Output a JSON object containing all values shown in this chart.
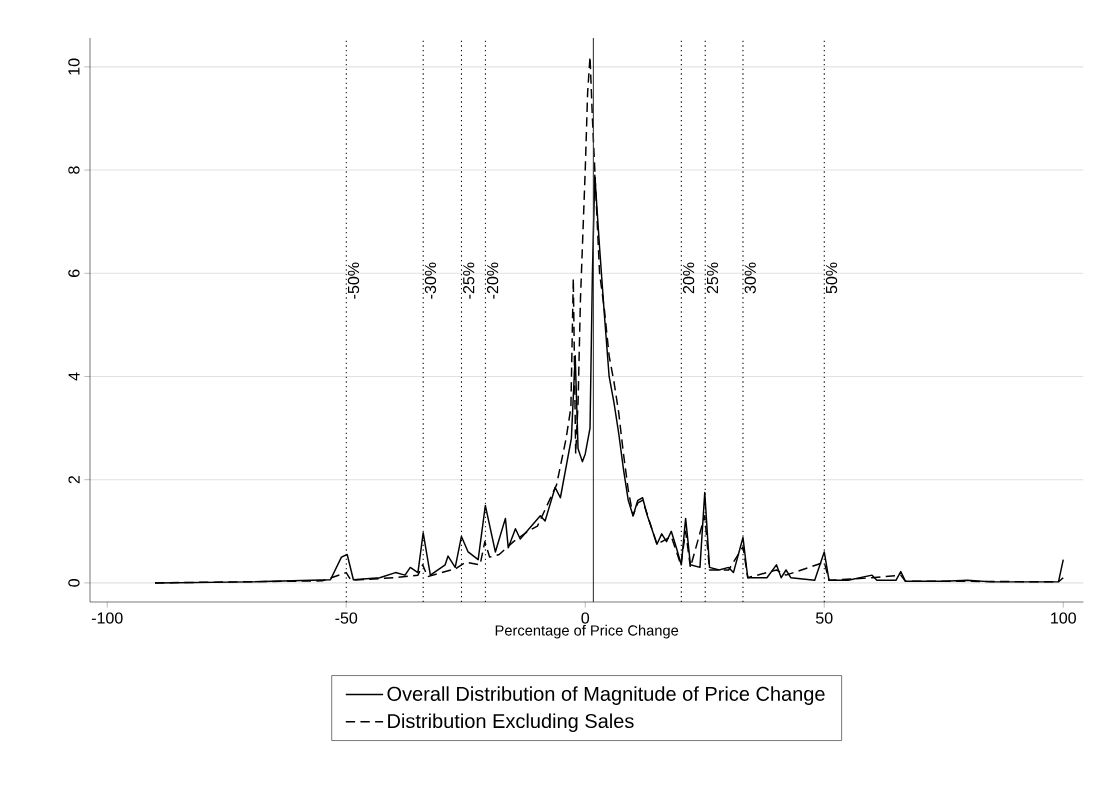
{
  "chart_data": {
    "type": "line",
    "xlabel": "Percentage of Price Change",
    "xlim": [
      -103.6,
      104.2
    ],
    "ylim": [
      -0.37,
      10.56
    ],
    "xticks": [
      -100,
      -50,
      0,
      50,
      100
    ],
    "yticks": [
      0,
      2,
      4,
      6,
      8,
      10
    ],
    "grid": "y",
    "legend": "bottom",
    "series": [
      {
        "name": "Overall Distribution of Magnitude of Price Change",
        "color": "#000000",
        "line_style": "solid",
        "x": [
          -90,
          -70,
          -53.3,
          -51,
          -49.8,
          -48.5,
          -43,
          -39.7,
          -37.7,
          -36.6,
          -35,
          -33.9,
          -32.4,
          -29.3,
          -28.7,
          -27.2,
          -25.9,
          -24.5,
          -22.4,
          -20.9,
          -18.8,
          -16.7,
          -16.1,
          -14.6,
          -13.6,
          -9.4,
          -8.4,
          -6.3,
          -5.2,
          -2.9,
          -2.1,
          -1.5,
          -0.6,
          0,
          1,
          1.5,
          2,
          3,
          4,
          5,
          6,
          7,
          8,
          9,
          10,
          11,
          12,
          13,
          15,
          16,
          17,
          18,
          19,
          20.1,
          21,
          22,
          24,
          25,
          26,
          28,
          30,
          31,
          33,
          34,
          38,
          40,
          41,
          42,
          43,
          48,
          50,
          51,
          55,
          60,
          61,
          65,
          66,
          67,
          75,
          80,
          85,
          95,
          99,
          100
        ],
        "values": [
          0,
          0.02,
          0.06,
          0.5,
          0.55,
          0.06,
          0.1,
          0.2,
          0.15,
          0.3,
          0.2,
          0.97,
          0.15,
          0.35,
          0.52,
          0.3,
          0.9,
          0.6,
          0.45,
          1.5,
          0.6,
          1.25,
          0.68,
          1.05,
          0.85,
          1.3,
          1.2,
          1.85,
          1.65,
          2.8,
          4.4,
          2.6,
          2.35,
          2.5,
          3.0,
          6,
          7.9,
          6.5,
          5.2,
          4,
          3.5,
          2.9,
          2.2,
          1.6,
          1.3,
          1.6,
          1.65,
          1.3,
          0.75,
          0.95,
          0.8,
          1.0,
          0.7,
          0.35,
          1.25,
          0.35,
          0.3,
          1.75,
          0.3,
          0.25,
          0.3,
          0.2,
          0.88,
          0.1,
          0.1,
          0.35,
          0.1,
          0.25,
          0.1,
          0.05,
          0.6,
          0.05,
          0.05,
          0.15,
          0.05,
          0.05,
          0.22,
          0.03,
          0.03,
          0.05,
          0.02,
          0.02,
          0.02,
          0.45
        ]
      },
      {
        "name": "Distribution Excluding Sales",
        "color": "#000000",
        "line_style": "dashed",
        "x": [
          -90,
          -55,
          -50,
          -49,
          -40,
          -35,
          -34,
          -33,
          -30,
          -27,
          -25,
          -22,
          -21,
          -20,
          -18,
          -15,
          -12,
          -10,
          -8,
          -6,
          -4,
          -3,
          -2.5,
          -2,
          -1.5,
          -1,
          0,
          0.5,
          1,
          1.5,
          2,
          3,
          4,
          5,
          6,
          7,
          8,
          9,
          10,
          11,
          12,
          15,
          18,
          20,
          21,
          22,
          25,
          26,
          30,
          33,
          34,
          40,
          42,
          50,
          51,
          60,
          66,
          67,
          80,
          99,
          100
        ],
        "values": [
          0,
          0.04,
          0.2,
          0.05,
          0.1,
          0.15,
          0.35,
          0.12,
          0.2,
          0.28,
          0.4,
          0.35,
          0.8,
          0.5,
          0.55,
          0.8,
          1.0,
          1.1,
          1.5,
          1.9,
          2.8,
          3.4,
          5.9,
          2.5,
          3.5,
          5.5,
          8,
          9.5,
          10.2,
          9,
          8,
          6,
          5.3,
          4.4,
          3.9,
          3.3,
          2.5,
          1.8,
          1.3,
          1.55,
          1.6,
          0.75,
          0.9,
          0.35,
          1.0,
          0.3,
          1.3,
          0.25,
          0.25,
          0.7,
          0.1,
          0.25,
          0.15,
          0.4,
          0.05,
          0.1,
          0.15,
          0.03,
          0.03,
          0.02,
          0.1
        ]
      }
    ],
    "ref_lines": [
      {
        "axis": "x",
        "value": -50,
        "line_style": "dotted"
      },
      {
        "axis": "x",
        "value": -33.9,
        "line_style": "dotted"
      },
      {
        "axis": "x",
        "value": -25.9,
        "line_style": "dotted"
      },
      {
        "axis": "x",
        "value": -20.9,
        "line_style": "dotted"
      },
      {
        "axis": "x",
        "value": 20.1,
        "line_style": "dotted"
      },
      {
        "axis": "x",
        "value": 25.1,
        "line_style": "dotted"
      },
      {
        "axis": "x",
        "value": 33,
        "line_style": "dotted"
      },
      {
        "axis": "x",
        "value": 50,
        "line_style": "dotted"
      },
      {
        "axis": "x",
        "value": 1.7,
        "line_style": "solid",
        "color": "#333333"
      }
    ],
    "annotations": [
      {
        "text": "-50%",
        "x": -50,
        "y": 6.25
      },
      {
        "text": "-30%",
        "x": -33.9,
        "y": 6.25
      },
      {
        "text": "-25%",
        "x": -25.9,
        "y": 6.25
      },
      {
        "text": "-20%",
        "x": -20.9,
        "y": 6.25
      },
      {
        "text": "20%",
        "x": 20.1,
        "y": 6.25
      },
      {
        "text": "25%",
        "x": 25.1,
        "y": 6.25
      },
      {
        "text": "30%",
        "x": 33,
        "y": 6.25
      },
      {
        "text": "50%",
        "x": 50,
        "y": 6.25
      }
    ]
  }
}
